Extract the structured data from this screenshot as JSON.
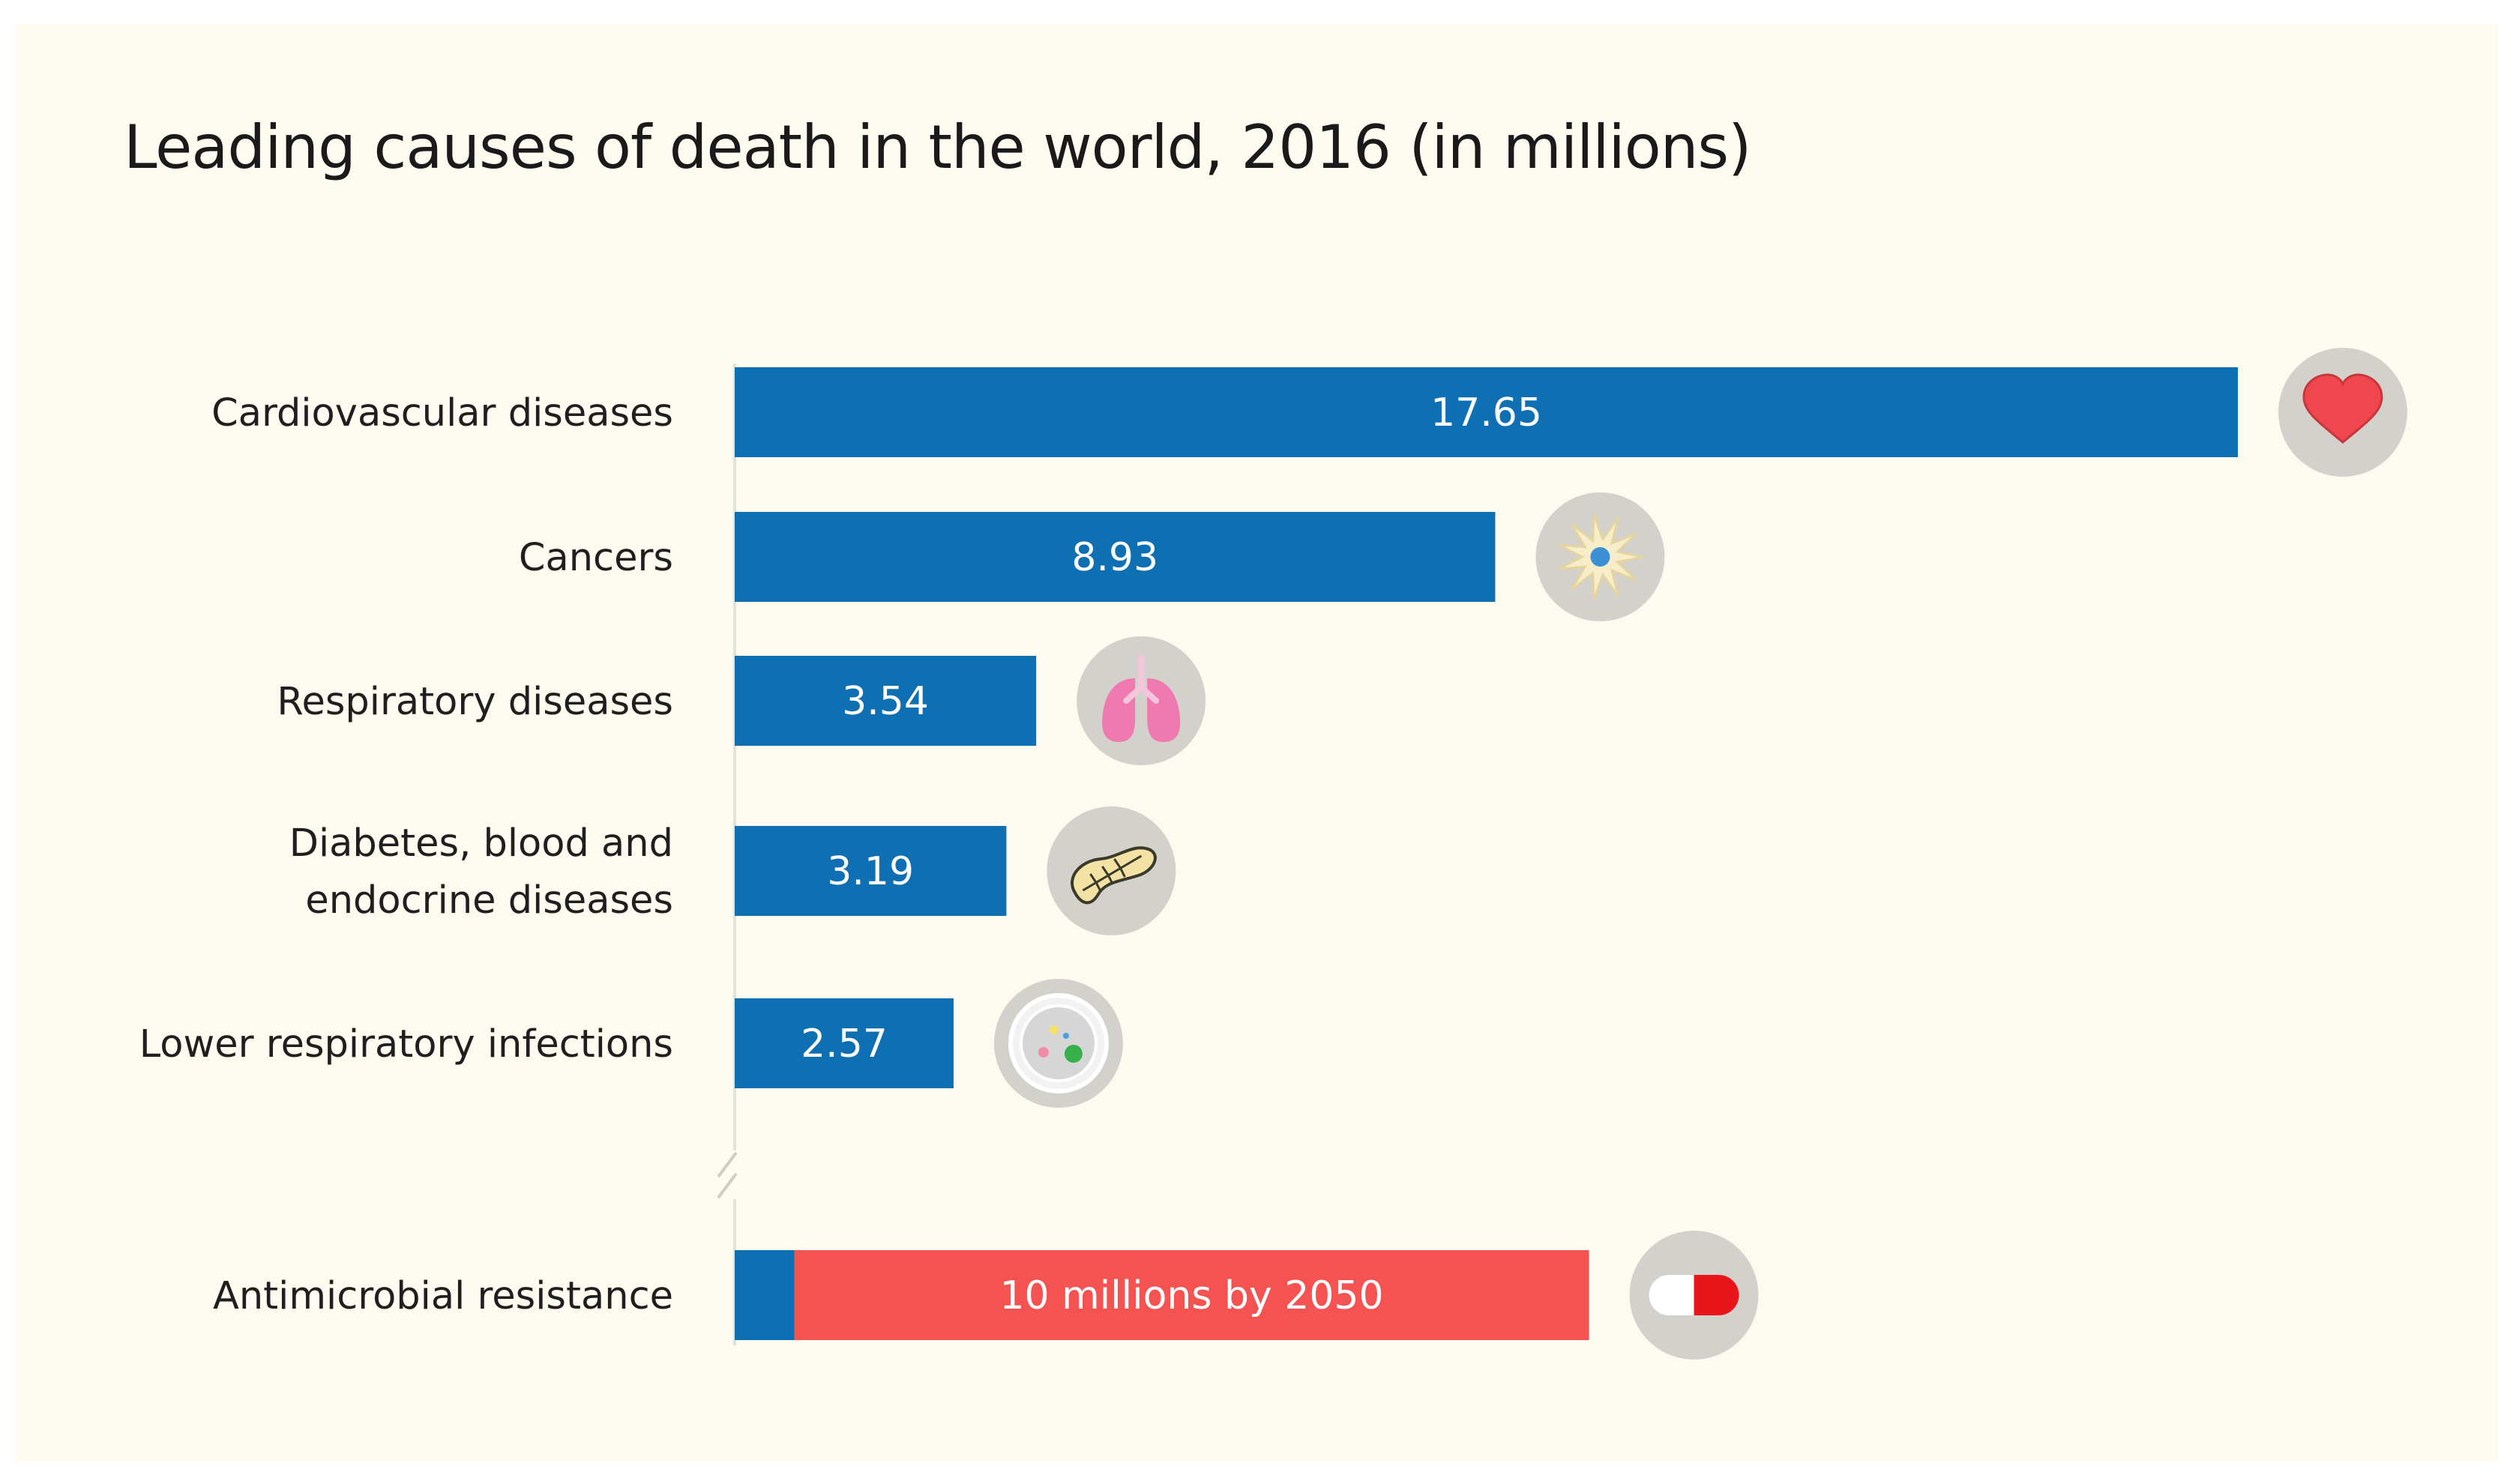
{
  "chart_data": {
    "type": "bar",
    "orientation": "horizontal",
    "title": "Leading causes of death in the world, 2016 (in millions)",
    "categories": [
      "Cardiovascular diseases",
      "Cancers",
      "Respiratory diseases",
      "Diabetes, blood and endocrine diseases",
      "Lower respiratory infections"
    ],
    "category_lines": [
      [
        "Cardiovascular diseases"
      ],
      [
        "Cancers"
      ],
      [
        "Respiratory diseases"
      ],
      [
        "Diabetes, blood and",
        "endocrine diseases"
      ],
      [
        "Lower respiratory infections"
      ]
    ],
    "values": [
      17.65,
      8.93,
      3.54,
      3.19,
      2.57
    ],
    "value_labels": [
      "17.65",
      "8.93",
      "3.54",
      "3.19",
      "2.57"
    ],
    "icons": [
      "heart-icon",
      "cancer-cell-icon",
      "lungs-icon",
      "pancreas-icon",
      "petri-dish-icon"
    ],
    "extra_bar": {
      "category": "Antimicrobial resistance",
      "current_value": 0.7,
      "projected_value": 10,
      "label": "10 millions by 2050",
      "icon": "pill-icon"
    },
    "xlim": [
      0,
      17.65
    ],
    "axis_break": true,
    "colors": {
      "bar": "#0f6fb3",
      "projection": "#f55252",
      "icon_circle": "#d3d1cc",
      "background": "#fdfbf0"
    }
  }
}
